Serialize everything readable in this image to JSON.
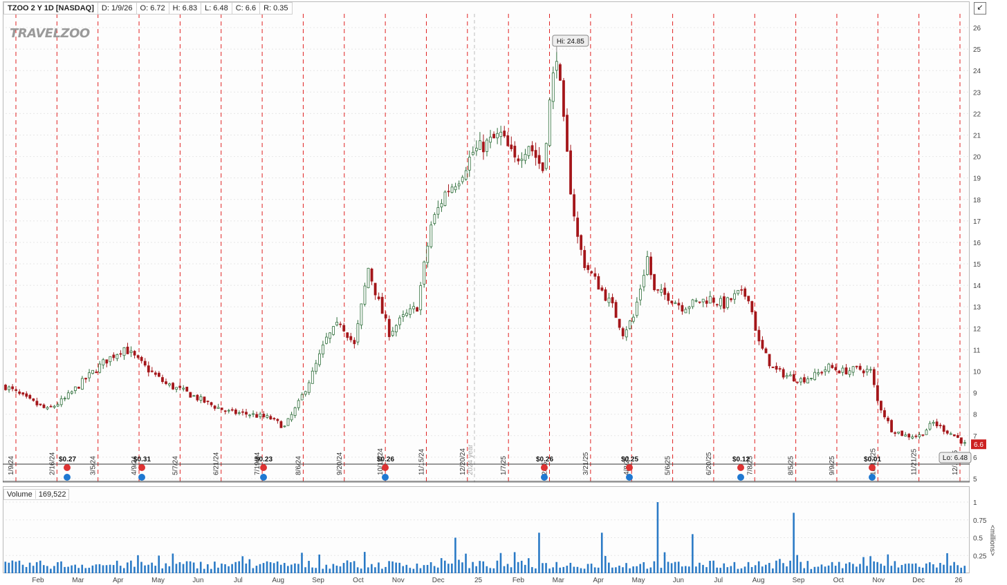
{
  "header": {
    "symbol_label": "TZOO 2 Y 1D [NASDAQ]",
    "date": "D: 1/9/26",
    "open": "O: 6.72",
    "high": "H: 6.83",
    "low": "L: 6.48",
    "close": "C: 6.6",
    "range": "R: 0.35"
  },
  "logo_text": "TRAVELZOO",
  "volume_label": "Volume",
  "volume_value": "169,522",
  "volume_unit_label": "<millions>",
  "colors": {
    "up": "#2e6e3a",
    "down": "#a4161a",
    "event_line": "#e02020",
    "volume": "#2a7ac6",
    "last_price": "#cc2222"
  },
  "chart_data": {
    "type": "candlestick",
    "y_axis": {
      "min": 5,
      "max": 26,
      "ticks": [
        5,
        6,
        7,
        8,
        9,
        10,
        11,
        12,
        13,
        14,
        15,
        16,
        17,
        18,
        19,
        20,
        21,
        22,
        23,
        24,
        25,
        26
      ]
    },
    "volume_axis": {
      "min": 0,
      "max": 1,
      "ticks": [
        "0.25",
        "0.5",
        "0.75",
        "1"
      ]
    },
    "x_month_labels": [
      "Feb",
      "Mar",
      "Apr",
      "May",
      "Jun",
      "Jul",
      "Aug",
      "Sep",
      "Oct",
      "Nov",
      "Dec",
      "25",
      "Feb",
      "Mar",
      "Apr",
      "May",
      "Jun",
      "Jul",
      "Aug",
      "Sep",
      "Oct",
      "Nov",
      "Dec",
      "26"
    ],
    "event_dates": [
      "1/9/24",
      "2/16/24",
      "3/5/24",
      "4/9/24",
      "5/7/24",
      "6/21/24",
      "7/19/24",
      "8/6/24",
      "9/20/24",
      "10/18/24",
      "11/15/24",
      "12/20/24",
      "1/7/25",
      "2/25",
      "3/21/25",
      "4/8/25",
      "5/6/25",
      "6/20/25",
      "7/8/25",
      "8/5/25",
      "9/9/25",
      "10/17/25",
      "11/21/25",
      "12/.../25"
    ],
    "year_marker": "2024 year",
    "dividends": [
      "$0.27",
      "$0.31",
      "$0.23",
      "$0.26",
      "$0.26",
      "$0.25",
      "$0.12",
      "$0.01"
    ],
    "high_label": "Hi: 24.85",
    "low_label": "Lo: 6.48",
    "last_price": "6.6",
    "price_path": [
      [
        0,
        9.3
      ],
      [
        6,
        8.7
      ],
      [
        12,
        8.2
      ],
      [
        17,
        8.7
      ],
      [
        22,
        9.5
      ],
      [
        28,
        10.4
      ],
      [
        34,
        11.1
      ],
      [
        40,
        10.2
      ],
      [
        46,
        9.4
      ],
      [
        52,
        9.0
      ],
      [
        58,
        8.5
      ],
      [
        64,
        8.1
      ],
      [
        70,
        8.0
      ],
      [
        76,
        7.8
      ],
      [
        80,
        7.4
      ],
      [
        84,
        8.5
      ],
      [
        88,
        9.9
      ],
      [
        92,
        11.5
      ],
      [
        96,
        12.3
      ],
      [
        100,
        11.2
      ],
      [
        104,
        14.8
      ],
      [
        107,
        13.2
      ],
      [
        110,
        11.8
      ],
      [
        114,
        12.5
      ],
      [
        118,
        13.0
      ],
      [
        122,
        16.8
      ],
      [
        126,
        18.3
      ],
      [
        130,
        19.0
      ],
      [
        134,
        20.2
      ],
      [
        138,
        20.6
      ],
      [
        142,
        21.0
      ],
      [
        146,
        19.8
      ],
      [
        150,
        20.6
      ],
      [
        154,
        19.4
      ],
      [
        156,
        22.5
      ],
      [
        158,
        24.85
      ],
      [
        160,
        21.5
      ],
      [
        162,
        18.5
      ],
      [
        164,
        16.2
      ],
      [
        166,
        15.0
      ],
      [
        170,
        14.0
      ],
      [
        174,
        13.0
      ],
      [
        177,
        11.8
      ],
      [
        180,
        12.5
      ],
      [
        184,
        15.3
      ],
      [
        186,
        13.7
      ],
      [
        190,
        13.5
      ],
      [
        194,
        13.0
      ],
      [
        198,
        13.2
      ],
      [
        202,
        13.4
      ],
      [
        206,
        13.1
      ],
      [
        210,
        13.6
      ],
      [
        213,
        13.5
      ],
      [
        216,
        11.3
      ],
      [
        220,
        10.1
      ],
      [
        224,
        9.8
      ],
      [
        228,
        9.6
      ],
      [
        232,
        9.8
      ],
      [
        236,
        10.2
      ],
      [
        240,
        10.0
      ],
      [
        245,
        10.1
      ],
      [
        248,
        10.0
      ],
      [
        250,
        8.6
      ],
      [
        254,
        7.3
      ],
      [
        258,
        7.0
      ],
      [
        262,
        7.0
      ],
      [
        266,
        7.6
      ],
      [
        270,
        7.2
      ],
      [
        273,
        6.9
      ],
      [
        275,
        6.6
      ]
    ],
    "volume_spikes": [
      [
        129,
        0.5
      ],
      [
        153,
        0.57
      ],
      [
        171,
        0.57
      ],
      [
        187,
        1.0
      ],
      [
        197,
        0.55
      ],
      [
        226,
        0.85
      ]
    ]
  }
}
